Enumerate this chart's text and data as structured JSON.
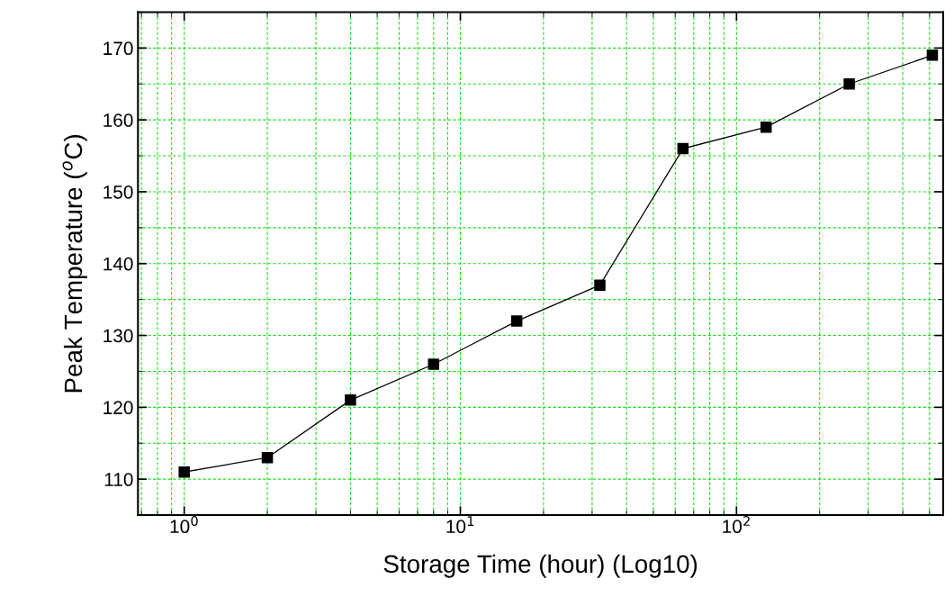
{
  "chart_data": {
    "type": "line",
    "xlabel": "Storage Time (hour) (Log10)",
    "ylabel": "Peak Temperature ($^{o}$C)",
    "log": "x",
    "xlim": [
      0.68,
      560
    ],
    "xticks": [
      {
        "value": 1,
        "label": "10$^{0}$"
      },
      {
        "value": 10,
        "label": "10$^{1}$"
      },
      {
        "value": 100,
        "label": "10$^{2}$"
      }
    ],
    "ylim": [
      105,
      175
    ],
    "yticks": [
      110,
      120,
      130,
      140,
      150,
      160,
      170
    ],
    "grid": true,
    "marker": "square",
    "line_style": "solid",
    "series": [
      {
        "color": "#000000",
        "x": [
          1,
          2,
          4,
          8,
          16,
          32,
          64,
          128,
          256,
          512
        ],
        "values": [
          111,
          113,
          121,
          126,
          132,
          137,
          156,
          159,
          165,
          169
        ]
      }
    ]
  }
}
